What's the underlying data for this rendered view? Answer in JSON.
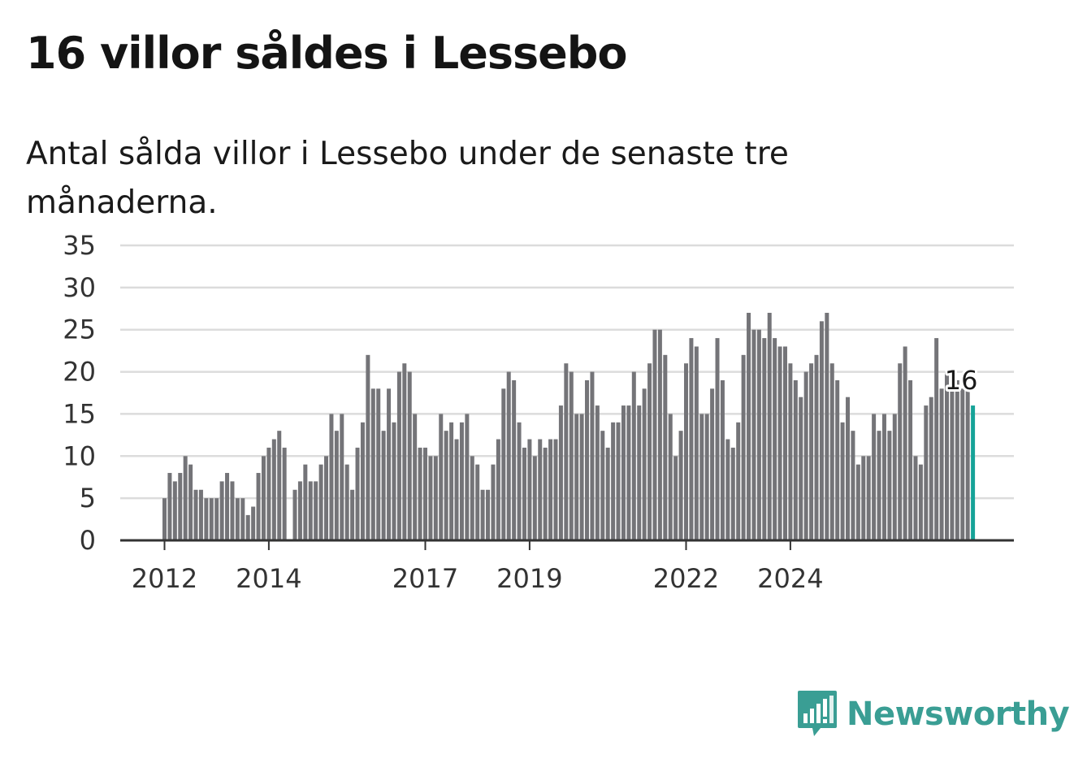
{
  "title": "16 villor såldes i Lessebo",
  "subtitle": "Antal sålda villor i Lessebo under de senaste tre månaderna.",
  "brand": {
    "name": "Newsworthy",
    "color": "#3a9e94",
    "icon": "newsworthy-logo-icon"
  },
  "colors": {
    "bar": "#747478",
    "highlight": "#16a398",
    "grid": "#dcdcdc",
    "axis": "#333333"
  },
  "chart_data": {
    "type": "bar",
    "title": "16 villor såldes i Lessebo",
    "subtitle": "Antal sålda villor i Lessebo under de senaste tre månaderna.",
    "ylim": [
      0,
      35
    ],
    "yticks": [
      0,
      5,
      10,
      15,
      20,
      25,
      30,
      35
    ],
    "grid": true,
    "xticks": [
      {
        "label": "2012",
        "index": 0
      },
      {
        "label": "2014",
        "index": 20
      },
      {
        "label": "2017",
        "index": 50
      },
      {
        "label": "2019",
        "index": 70
      },
      {
        "label": "2022",
        "index": 100
      },
      {
        "label": "2024",
        "index": 120
      }
    ],
    "values": [
      5,
      8,
      7,
      8,
      10,
      9,
      6,
      6,
      5,
      5,
      5,
      7,
      8,
      7,
      5,
      5,
      3,
      4,
      8,
      10,
      11,
      12,
      13,
      11,
      0,
      6,
      7,
      9,
      7,
      7,
      9,
      10,
      15,
      13,
      15,
      9,
      6,
      11,
      14,
      22,
      18,
      18,
      13,
      18,
      14,
      20,
      21,
      20,
      15,
      11,
      11,
      10,
      10,
      15,
      13,
      14,
      12,
      14,
      15,
      10,
      9,
      6,
      6,
      9,
      12,
      18,
      20,
      19,
      14,
      11,
      12,
      10,
      12,
      11,
      12,
      12,
      16,
      21,
      20,
      15,
      15,
      19,
      20,
      16,
      13,
      11,
      14,
      14,
      16,
      16,
      20,
      16,
      18,
      21,
      25,
      25,
      22,
      15,
      10,
      13,
      21,
      24,
      23,
      15,
      15,
      18,
      24,
      19,
      12,
      11,
      14,
      22,
      27,
      25,
      25,
      24,
      27,
      24,
      23,
      23,
      21,
      19,
      17,
      20,
      21,
      22,
      26,
      27,
      21,
      19,
      14,
      17,
      13,
      9,
      10,
      10,
      15,
      13,
      15,
      13,
      15,
      21,
      23,
      19,
      10,
      9,
      16,
      17,
      24,
      18,
      20,
      19,
      19,
      18,
      18,
      16
    ],
    "highlight_last": true,
    "data_labels": [
      {
        "index": 155,
        "text": "16"
      }
    ]
  }
}
